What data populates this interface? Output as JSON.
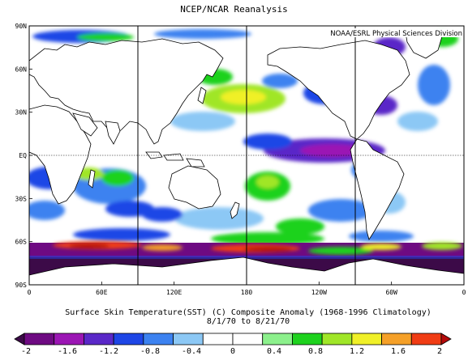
{
  "header": {
    "title": "NCEP/NCAR Reanalysis",
    "credit": "NOAA/ESRL Physical Sciences Division"
  },
  "caption": {
    "line1": "Surface Skin Temperature(SST) (C) Composite Anomaly (1968-1996 Climatology)",
    "line2": "8/1/70  to 8/21/70"
  },
  "axes": {
    "y_labels": [
      "90N",
      "60N",
      "30N",
      "EQ",
      "30S",
      "60S",
      "90S"
    ],
    "x_labels": [
      "0",
      "60E",
      "120E",
      "180",
      "120W",
      "60W",
      "0"
    ]
  },
  "colorbar": {
    "labels": [
      "-2",
      "-1.6",
      "-1.2",
      "-0.8",
      "-0.4",
      "0",
      "0.4",
      "0.8",
      "1.2",
      "1.6",
      "2"
    ],
    "colors": [
      "#3c0a48",
      "#6e0a82",
      "#9b16b4",
      "#5a28c8",
      "#1e46e6",
      "#3c82f0",
      "#8cc8f5",
      "#ffffff",
      "#ffffff",
      "#8cf08c",
      "#1ed21e",
      "#a0e628",
      "#f0f028",
      "#f5a028",
      "#f03c14",
      "#b40a0a"
    ]
  },
  "colors": {
    "background": "#ffffff",
    "land": "#ffffff",
    "coastline": "#000000"
  }
}
